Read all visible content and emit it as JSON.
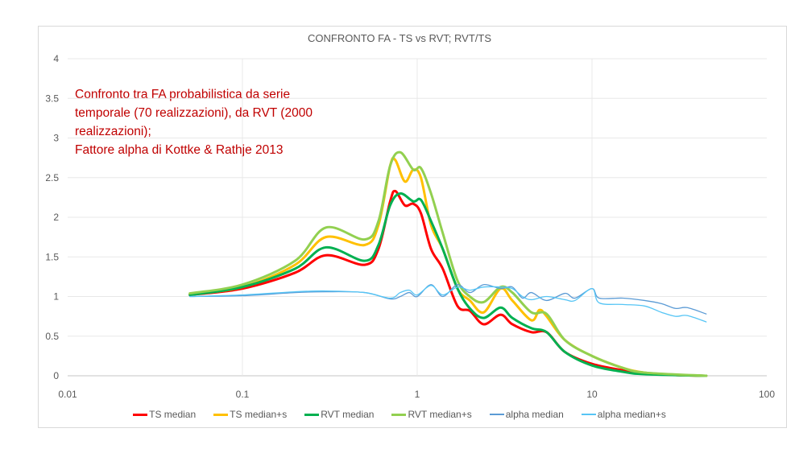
{
  "chart_data": {
    "type": "line",
    "title": "CONFRONTO FA - TS vs RVT; RVT/TS",
    "annotation": [
      "Confronto tra FA probabilistica da serie",
      "temporale (70 realizzazioni), da RVT (2000",
      "realizzazioni);",
      "Fattore alpha di Kottke & Rathje 2013"
    ],
    "xscale": "log",
    "xlim": [
      0.01,
      100
    ],
    "ylim": [
      0,
      4
    ],
    "xticks": [
      "0.01",
      "0.1",
      "1",
      "10",
      "100"
    ],
    "xtick_values": [
      0.01,
      0.1,
      1,
      10,
      100
    ],
    "yticks": [
      "0",
      "0.5",
      "1",
      "1.5",
      "2",
      "2.5",
      "3",
      "3.5",
      "4"
    ],
    "ytick_values": [
      0,
      0.5,
      1,
      1.5,
      2,
      2.5,
      3,
      3.5,
      4
    ],
    "grid": true,
    "legend_position": "bottom",
    "series": [
      {
        "name": "TS median",
        "color": "#ff0000",
        "width": 3,
        "x": [
          0.05,
          0.1,
          0.2,
          0.3,
          0.5,
          0.6,
          0.7,
          0.75,
          0.85,
          0.95,
          1.05,
          1.2,
          1.4,
          1.7,
          2.0,
          2.4,
          3.0,
          3.5,
          4.5,
          5.5,
          7,
          10,
          15,
          20,
          30,
          45
        ],
        "y": [
          1.02,
          1.1,
          1.3,
          1.52,
          1.4,
          1.6,
          2.2,
          2.33,
          2.15,
          2.17,
          2.05,
          1.6,
          1.35,
          0.88,
          0.82,
          0.65,
          0.77,
          0.65,
          0.55,
          0.55,
          0.3,
          0.15,
          0.07,
          0.03,
          0.01,
          0.0
        ]
      },
      {
        "name": "TS median+s",
        "color": "#ffc000",
        "width": 3,
        "x": [
          0.05,
          0.1,
          0.2,
          0.3,
          0.5,
          0.6,
          0.7,
          0.75,
          0.85,
          0.95,
          1.05,
          1.2,
          1.4,
          1.7,
          2.0,
          2.4,
          3.0,
          3.5,
          4.5,
          5.0,
          5.5,
          7,
          10,
          15,
          20,
          30,
          45
        ],
        "y": [
          1.03,
          1.12,
          1.4,
          1.75,
          1.65,
          1.9,
          2.65,
          2.72,
          2.45,
          2.6,
          2.5,
          1.9,
          1.6,
          1.1,
          0.95,
          0.8,
          1.1,
          0.95,
          0.7,
          0.83,
          0.75,
          0.45,
          0.25,
          0.1,
          0.04,
          0.01,
          0.0
        ]
      },
      {
        "name": "RVT median",
        "color": "#00b050",
        "width": 3,
        "x": [
          0.05,
          0.1,
          0.2,
          0.3,
          0.5,
          0.6,
          0.7,
          0.8,
          0.95,
          1.05,
          1.2,
          1.4,
          1.7,
          2.0,
          2.4,
          3.0,
          3.5,
          4.5,
          5.5,
          7,
          10,
          15,
          20,
          45
        ],
        "y": [
          1.02,
          1.12,
          1.35,
          1.62,
          1.45,
          1.65,
          2.15,
          2.3,
          2.2,
          2.22,
          1.95,
          1.6,
          1.1,
          0.85,
          0.73,
          0.86,
          0.73,
          0.6,
          0.55,
          0.3,
          0.13,
          0.05,
          0.02,
          0.0
        ]
      },
      {
        "name": "RVT median+s",
        "color": "#92d050",
        "width": 3,
        "x": [
          0.05,
          0.1,
          0.2,
          0.3,
          0.5,
          0.6,
          0.7,
          0.8,
          0.95,
          1.05,
          1.2,
          1.4,
          1.7,
          2.0,
          2.4,
          3.0,
          3.5,
          4.5,
          5.5,
          7,
          10,
          15,
          20,
          45
        ],
        "y": [
          1.04,
          1.15,
          1.45,
          1.87,
          1.72,
          1.95,
          2.65,
          2.82,
          2.6,
          2.62,
          2.3,
          1.8,
          1.2,
          1.0,
          0.93,
          1.12,
          1.05,
          0.8,
          0.78,
          0.45,
          0.25,
          0.1,
          0.04,
          0.0
        ]
      },
      {
        "name": "alpha median",
        "color": "#5b9bd5",
        "width": 1.3,
        "x": [
          0.05,
          0.1,
          0.2,
          0.3,
          0.5,
          0.7,
          0.8,
          0.9,
          1.0,
          1.2,
          1.4,
          1.7,
          2.0,
          2.4,
          3.0,
          3.5,
          4.0,
          4.5,
          5.5,
          7,
          8,
          10,
          11,
          15,
          20,
          25,
          30,
          35,
          45
        ],
        "y": [
          1.0,
          1.01,
          1.05,
          1.06,
          1.05,
          0.97,
          1.0,
          1.05,
          1.0,
          1.15,
          1.0,
          1.15,
          1.05,
          1.15,
          1.1,
          1.12,
          0.98,
          1.05,
          0.95,
          1.04,
          0.98,
          1.1,
          0.98,
          0.98,
          0.95,
          0.91,
          0.85,
          0.86,
          0.78
        ]
      },
      {
        "name": "alpha median+s",
        "color": "#56c5f5",
        "width": 1.3,
        "x": [
          0.05,
          0.1,
          0.2,
          0.3,
          0.5,
          0.7,
          0.8,
          0.9,
          1.0,
          1.2,
          1.4,
          1.7,
          2.0,
          2.4,
          3.0,
          3.5,
          4.0,
          4.5,
          5.5,
          7,
          8,
          10,
          11,
          15,
          20,
          25,
          30,
          35,
          45
        ],
        "y": [
          1.0,
          1.02,
          1.06,
          1.07,
          1.05,
          0.98,
          1.05,
          1.08,
          1.02,
          1.14,
          1.02,
          1.12,
          1.08,
          1.12,
          1.12,
          1.1,
          1.0,
          0.96,
          1.0,
          0.96,
          0.95,
          1.1,
          0.92,
          0.9,
          0.88,
          0.8,
          0.75,
          0.76,
          0.68
        ]
      }
    ]
  }
}
